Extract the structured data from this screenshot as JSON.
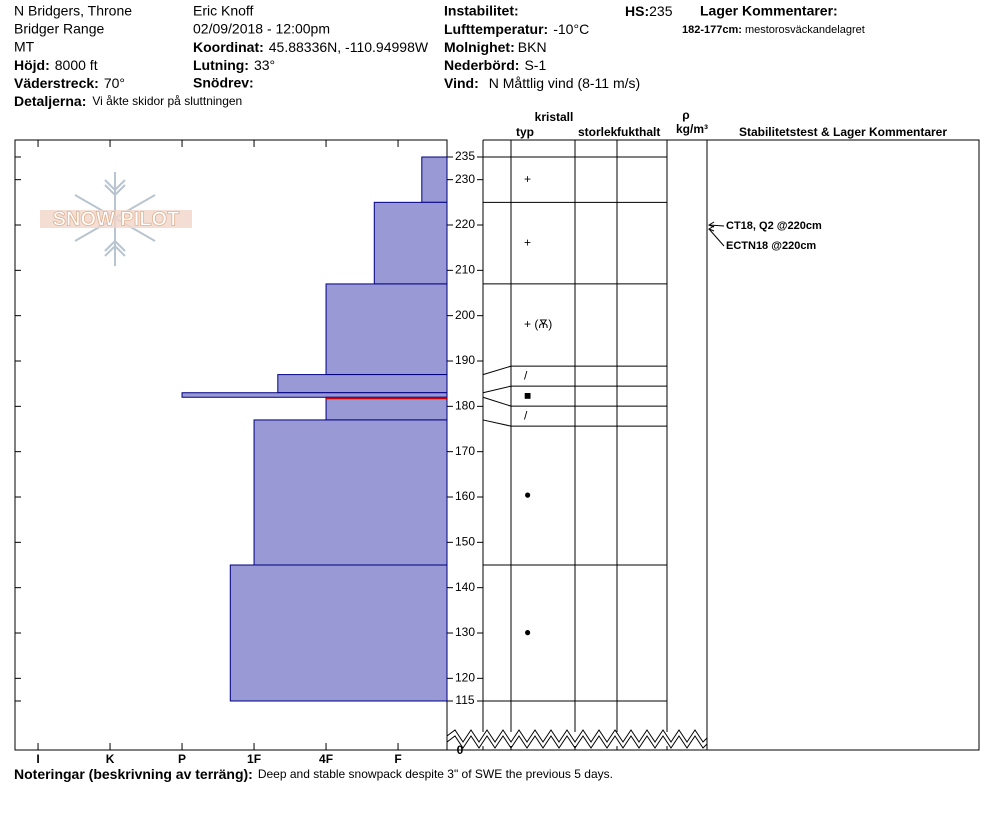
{
  "header": {
    "site": [
      "N Bridgers, Throne",
      "Bridger Range",
      "MT"
    ],
    "observer": "Eric Knoff",
    "datetime": "02/09/2018 - 12:00pm",
    "elevation": {
      "label": "Höjd:",
      "value": "8000 ft"
    },
    "aspect": {
      "label": "Väderstreck:",
      "value": "70°"
    },
    "details": {
      "label": "Detaljerna:",
      "value": "Vi åkte skidor på sluttningen"
    },
    "coordinates": {
      "label": "Koordinat:",
      "value": "45.88336N, -110.94998W"
    },
    "slope": {
      "label": "Lutning:",
      "value": "33°"
    },
    "wind_loading": {
      "label": "Snödrev:"
    },
    "instability": {
      "label": "Instabilitet:"
    },
    "air_temperature": {
      "label": "Lufttemperatur:",
      "value": "-10°C"
    },
    "sky": {
      "label": "Molnighet:",
      "value": "BKN"
    },
    "precipitation": {
      "label": "Nederbörd:",
      "value": "S-1"
    },
    "wind": {
      "label": "Vind:",
      "value": "N Måttlig vind (8-11 m/s)"
    },
    "hs": {
      "label": "HS:",
      "value": 235
    },
    "layer_comments": {
      "label": "Lager Kommentarer:",
      "range": "182-177cm:",
      "value": "mestorosväckandelagret"
    },
    "logo": "SNOW PILOT"
  },
  "chart_data": {
    "type": "snow_profile",
    "color": "#9999d6",
    "edge_color": "#000080",
    "critical_color": "#cc0000",
    "critical_layer": 5,
    "ylim": [
      115,
      235
    ],
    "yticks": [
      235,
      230,
      220,
      210,
      200,
      190,
      180,
      170,
      160,
      150,
      140,
      130,
      120,
      115
    ],
    "bottom_label": 0,
    "xlim": [
      6.32,
      0.32
    ],
    "xticks": [
      {
        "value": 6,
        "label": "I"
      },
      {
        "value": 5,
        "label": "K"
      },
      {
        "value": 4,
        "label": "P"
      },
      {
        "value": 3,
        "label": "1F"
      },
      {
        "value": 2,
        "label": "4F"
      },
      {
        "value": 1,
        "label": "F"
      }
    ],
    "layers": [
      {
        "top": 235,
        "bottom": 225,
        "hardness": 0.67,
        "grain": "+"
      },
      {
        "top": 225,
        "bottom": 207,
        "hardness": 1.33,
        "grain": "+"
      },
      {
        "top": 207,
        "bottom": 187,
        "hardness": 2,
        "grain": "+ (Ѫ)"
      },
      {
        "top": 187,
        "bottom": 183,
        "hardness": 2.67,
        "grain": "/"
      },
      {
        "top": 183,
        "bottom": 182,
        "hardness": 4,
        "grain": "■"
      },
      {
        "top": 182,
        "bottom": 177,
        "hardness": 2,
        "grain": "/"
      },
      {
        "top": 177,
        "bottom": 145,
        "hardness": 3,
        "grain": "●"
      },
      {
        "top": 145,
        "bottom": 115,
        "hardness": 3.33,
        "grain": "●"
      }
    ],
    "columns": {
      "crystal": "kristall",
      "type": "typ",
      "size": "storlek",
      "moisture": "fukthalt",
      "rho": "ρ",
      "density_unit": "kg/m³",
      "comments": "Stabilitetstest & Lager Kommentarer"
    },
    "tests": [
      {
        "text": "CT18, Q2 @220cm",
        "depth": 220
      },
      {
        "text": "ECTN18 @220cm",
        "depth": 220
      }
    ],
    "notes": {
      "label": "Noteringar (beskrivning av terräng):",
      "value": "Deep and stable snowpack despite 3\" of SWE the previous 5 days."
    }
  }
}
